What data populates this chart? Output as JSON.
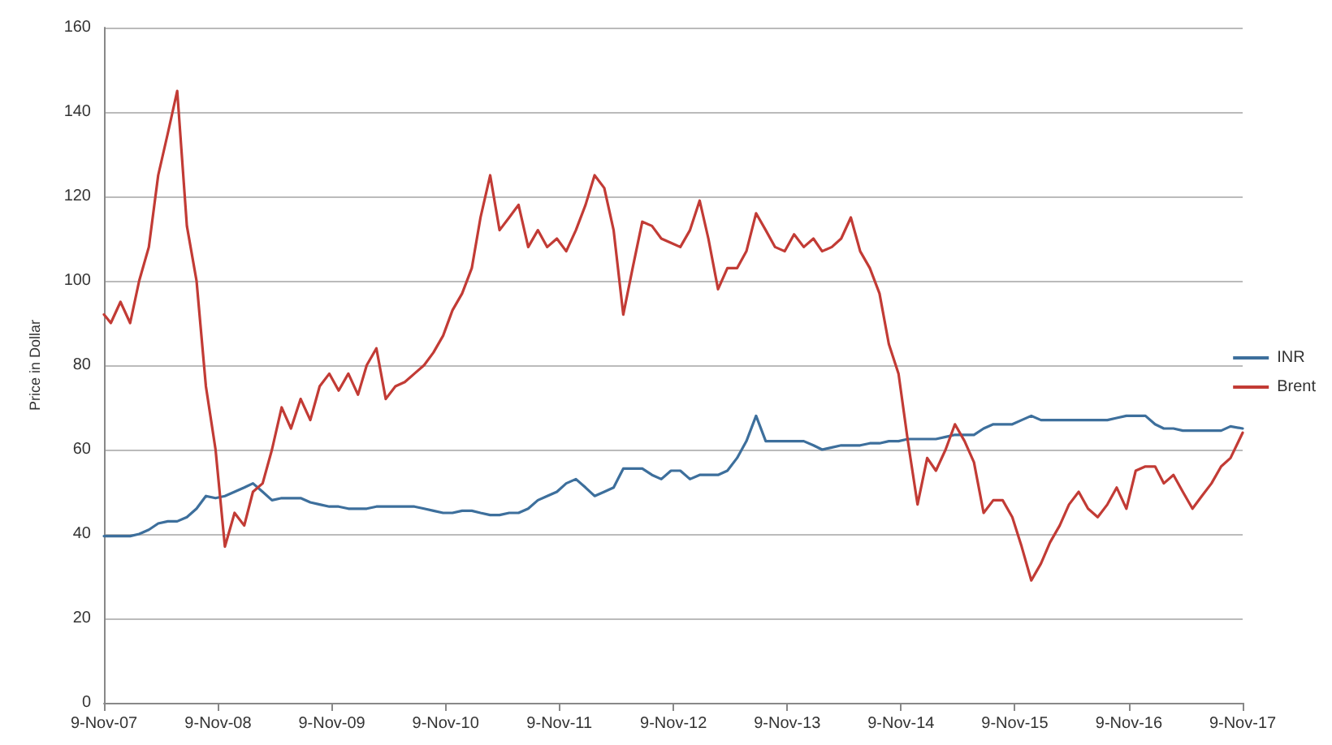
{
  "chart_data": {
    "type": "line",
    "ylabel": "Price in Dollar",
    "x": [
      "2007-11-09",
      "2007-12",
      "2008-01",
      "2008-02",
      "2008-03",
      "2008-04",
      "2008-05",
      "2008-06",
      "2008-07",
      "2008-08",
      "2008-09",
      "2008-10",
      "2008-11",
      "2008-12",
      "2009-01",
      "2009-02",
      "2009-03",
      "2009-04",
      "2009-05",
      "2009-06",
      "2009-07",
      "2009-08",
      "2009-09",
      "2009-10",
      "2009-11",
      "2009-12",
      "2010-01",
      "2010-02",
      "2010-03",
      "2010-04",
      "2010-05",
      "2010-06",
      "2010-07",
      "2010-08",
      "2010-09",
      "2010-10",
      "2010-11",
      "2010-12",
      "2011-01",
      "2011-02",
      "2011-03",
      "2011-04",
      "2011-05",
      "2011-06",
      "2011-07",
      "2011-08",
      "2011-09",
      "2011-10",
      "2011-11",
      "2011-12",
      "2012-01",
      "2012-02",
      "2012-03",
      "2012-04",
      "2012-05",
      "2012-06",
      "2012-07",
      "2012-08",
      "2012-09",
      "2012-10",
      "2012-11",
      "2012-12",
      "2013-01",
      "2013-02",
      "2013-03",
      "2013-04",
      "2013-05",
      "2013-06",
      "2013-07",
      "2013-08",
      "2013-09",
      "2013-10",
      "2013-11",
      "2013-12",
      "2014-01",
      "2014-02",
      "2014-03",
      "2014-04",
      "2014-05",
      "2014-06",
      "2014-07",
      "2014-08",
      "2014-09",
      "2014-10",
      "2014-11",
      "2014-12",
      "2015-01",
      "2015-02",
      "2015-03",
      "2015-04",
      "2015-05",
      "2015-06",
      "2015-07",
      "2015-08",
      "2015-09",
      "2015-10",
      "2015-11",
      "2015-12",
      "2016-01",
      "2016-02",
      "2016-03",
      "2016-04",
      "2016-05",
      "2016-06",
      "2016-07",
      "2016-08",
      "2016-09",
      "2016-10",
      "2016-11",
      "2016-12",
      "2017-01",
      "2017-02",
      "2017-03",
      "2017-04",
      "2017-05",
      "2017-06",
      "2017-07",
      "2017-08",
      "2017-09",
      "2017-10",
      "2017-11-09"
    ],
    "series": [
      {
        "name": "INR",
        "color": "#3d6f9c",
        "values": [
          39.5,
          39.5,
          39.5,
          39.5,
          40,
          41,
          42.5,
          43,
          43,
          44,
          46,
          49,
          48.5,
          49,
          50,
          51,
          52,
          50,
          48,
          48.5,
          48.5,
          48.5,
          47.5,
          47,
          46.5,
          46.5,
          46,
          46,
          46,
          46.5,
          46.5,
          46.5,
          46.5,
          46.5,
          46,
          45.5,
          45,
          45,
          45.5,
          45.5,
          45,
          44.5,
          44.5,
          45,
          45,
          46,
          48,
          49,
          50,
          52,
          53,
          51,
          49,
          50,
          51,
          55.5,
          55.5,
          55.5,
          54,
          53,
          55,
          55,
          53,
          54,
          54,
          54,
          55,
          58,
          62,
          68,
          62,
          62,
          62,
          62,
          62,
          61,
          60,
          60.5,
          61,
          61,
          61,
          61.5,
          61.5,
          62,
          62,
          62.5,
          62.5,
          62.5,
          62.5,
          63,
          63.5,
          63.5,
          63.5,
          65,
          66,
          66,
          66,
          67,
          68,
          67,
          67,
          67,
          67,
          67,
          67,
          67,
          67,
          67.5,
          68,
          68,
          68,
          66,
          65,
          65,
          64.5,
          64.5,
          64.5,
          64.5,
          64.5,
          65.5,
          65
        ]
      },
      {
        "name": "Brent",
        "color": "#c23b35",
        "values": [
          92,
          90,
          95,
          90,
          100,
          108,
          125,
          135,
          145,
          113,
          100,
          75,
          60,
          37,
          45,
          42,
          50,
          52,
          60,
          70,
          65,
          72,
          67,
          75,
          78,
          74,
          78,
          73,
          80,
          84,
          72,
          75,
          76,
          78,
          80,
          83,
          87,
          93,
          97,
          103,
          115,
          125,
          112,
          115,
          118,
          108,
          112,
          108,
          110,
          107,
          112,
          118,
          125,
          122,
          112,
          92,
          103,
          114,
          113,
          110,
          109,
          108,
          112,
          119,
          110,
          98,
          103,
          103,
          107,
          116,
          112,
          108,
          107,
          111,
          108,
          110,
          107,
          108,
          110,
          115,
          107,
          103,
          97,
          85,
          78,
          62,
          47,
          58,
          55,
          60,
          66,
          62,
          57,
          45,
          48,
          48,
          44,
          37,
          29,
          33,
          38,
          42,
          47,
          50,
          46,
          44,
          47,
          51,
          46,
          55,
          56,
          56,
          52,
          54,
          50,
          46,
          49,
          52,
          56,
          58,
          64
        ]
      }
    ],
    "xlim": [
      "2007-11-09",
      "2017-11-09"
    ],
    "xticks": [
      {
        "value": "2007-11-09",
        "label": "9-Nov-07"
      },
      {
        "value": "2008-11-09",
        "label": "9-Nov-08"
      },
      {
        "value": "2009-11-09",
        "label": "9-Nov-09"
      },
      {
        "value": "2010-11-09",
        "label": "9-Nov-10"
      },
      {
        "value": "2011-11-09",
        "label": "9-Nov-11"
      },
      {
        "value": "2012-11-09",
        "label": "9-Nov-12"
      },
      {
        "value": "2013-11-09",
        "label": "9-Nov-13"
      },
      {
        "value": "2014-11-09",
        "label": "9-Nov-14"
      },
      {
        "value": "2015-11-09",
        "label": "9-Nov-15"
      },
      {
        "value": "2016-11-09",
        "label": "9-Nov-16"
      },
      {
        "value": "2017-11-09",
        "label": "9-Nov-17"
      }
    ],
    "ylim": [
      0,
      160
    ],
    "yticks": [
      0,
      20,
      40,
      60,
      80,
      100,
      120,
      140,
      160
    ],
    "grid": "y",
    "legend": "right",
    "marker": "none",
    "line_style": "solid"
  }
}
